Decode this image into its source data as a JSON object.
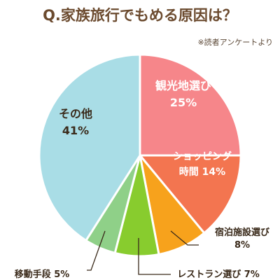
{
  "chart_data": {
    "type": "pie",
    "title": "Q.家族旅行でもめる原因は？",
    "source_note": "※読者アンケートより",
    "unit": "%",
    "slices": [
      {
        "name": "観光地選び",
        "value": 25,
        "color": "#f6868a",
        "label_lines": [
          "観光地選び",
          "25%"
        ],
        "label_color": "#ffffff"
      },
      {
        "name": "ショッピング時間",
        "value": 14,
        "color": "#f37550",
        "label_lines": [
          "ショッピング",
          "時間 14%"
        ],
        "label_color": "#ffffff"
      },
      {
        "name": "宿泊施設選び",
        "value": 8,
        "color": "#f7a21c",
        "label_lines": [
          "宿泊施設選び",
          "8%"
        ],
        "label_color": "#3a2a1a"
      },
      {
        "name": "レストラン選び",
        "value": 7,
        "color": "#88cc2e",
        "label_lines": [
          "レストラン選び 7%"
        ],
        "label_color": "#3a2a1a"
      },
      {
        "name": "移動手段",
        "value": 5,
        "color": "#8fd088",
        "label_lines": [
          "移動手段 5%"
        ],
        "label_color": "#3a2a1a"
      },
      {
        "name": "その他",
        "value": 41,
        "color": "#a9dde6",
        "label_lines": [
          "その他",
          "41%"
        ],
        "label_color": "#3a2a1a"
      }
    ]
  }
}
